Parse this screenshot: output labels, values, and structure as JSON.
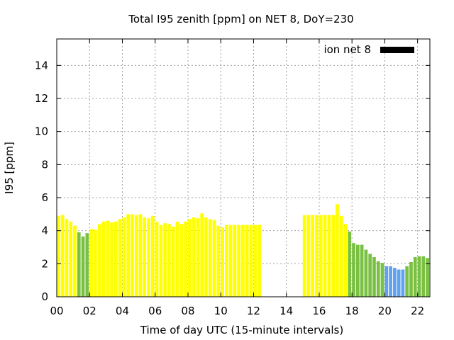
{
  "chart_data": {
    "type": "bar",
    "title": "Total I95 zenith [ppm] on NET 8, DoY=230",
    "xlabel": "Time of day UTC (15-minute intervals)",
    "ylabel": "I95 [ppm]",
    "xlim": [
      0,
      22.75
    ],
    "ylim": [
      0,
      15.6
    ],
    "x_tick_labels": [
      "00",
      "02",
      "04",
      "06",
      "08",
      "10",
      "12",
      "14",
      "16",
      "18",
      "20",
      "22"
    ],
    "x_tick_values": [
      0,
      2,
      4,
      6,
      8,
      10,
      12,
      14,
      16,
      18,
      20,
      22
    ],
    "y_tick_values": [
      0,
      2,
      4,
      6,
      8,
      10,
      12,
      14
    ],
    "y_tick_labels": [
      "0",
      "2",
      "4",
      "6",
      "8",
      "10",
      "12",
      "14"
    ],
    "grid": true,
    "legend": {
      "label": "ion net 8",
      "position": "top-right",
      "color": "#000000"
    },
    "colors": {
      "yellow": "#ffff00",
      "green": "#7ac143",
      "blue": "#5ea2f0"
    },
    "bin_width_hours": 0.25,
    "bars": [
      {
        "x": 0.0,
        "y": 4.9,
        "c": "yellow"
      },
      {
        "x": 0.25,
        "y": 4.95,
        "c": "yellow"
      },
      {
        "x": 0.5,
        "y": 4.7,
        "c": "yellow"
      },
      {
        "x": 0.75,
        "y": 4.55,
        "c": "yellow"
      },
      {
        "x": 1.0,
        "y": 4.3,
        "c": "yellow"
      },
      {
        "x": 1.25,
        "y": 3.9,
        "c": "green"
      },
      {
        "x": 1.5,
        "y": 3.65,
        "c": "green"
      },
      {
        "x": 1.75,
        "y": 3.85,
        "c": "green"
      },
      {
        "x": 2.0,
        "y": 4.1,
        "c": "yellow"
      },
      {
        "x": 2.25,
        "y": 4.05,
        "c": "yellow"
      },
      {
        "x": 2.5,
        "y": 4.4,
        "c": "yellow"
      },
      {
        "x": 2.75,
        "y": 4.55,
        "c": "yellow"
      },
      {
        "x": 3.0,
        "y": 4.6,
        "c": "yellow"
      },
      {
        "x": 3.25,
        "y": 4.5,
        "c": "yellow"
      },
      {
        "x": 3.5,
        "y": 4.55,
        "c": "yellow"
      },
      {
        "x": 3.75,
        "y": 4.7,
        "c": "yellow"
      },
      {
        "x": 4.0,
        "y": 4.8,
        "c": "yellow"
      },
      {
        "x": 4.25,
        "y": 5.0,
        "c": "yellow"
      },
      {
        "x": 4.5,
        "y": 5.0,
        "c": "yellow"
      },
      {
        "x": 4.75,
        "y": 4.95,
        "c": "yellow"
      },
      {
        "x": 5.0,
        "y": 5.0,
        "c": "yellow"
      },
      {
        "x": 5.25,
        "y": 4.8,
        "c": "yellow"
      },
      {
        "x": 5.5,
        "y": 4.75,
        "c": "yellow"
      },
      {
        "x": 5.75,
        "y": 4.9,
        "c": "yellow"
      },
      {
        "x": 6.0,
        "y": 4.55,
        "c": "yellow"
      },
      {
        "x": 6.25,
        "y": 4.35,
        "c": "yellow"
      },
      {
        "x": 6.5,
        "y": 4.45,
        "c": "yellow"
      },
      {
        "x": 6.75,
        "y": 4.4,
        "c": "yellow"
      },
      {
        "x": 7.0,
        "y": 4.25,
        "c": "yellow"
      },
      {
        "x": 7.25,
        "y": 4.55,
        "c": "yellow"
      },
      {
        "x": 7.5,
        "y": 4.4,
        "c": "yellow"
      },
      {
        "x": 7.75,
        "y": 4.55,
        "c": "yellow"
      },
      {
        "x": 8.0,
        "y": 4.7,
        "c": "yellow"
      },
      {
        "x": 8.25,
        "y": 4.8,
        "c": "yellow"
      },
      {
        "x": 8.5,
        "y": 4.75,
        "c": "yellow"
      },
      {
        "x": 8.75,
        "y": 5.05,
        "c": "yellow"
      },
      {
        "x": 9.0,
        "y": 4.8,
        "c": "yellow"
      },
      {
        "x": 9.25,
        "y": 4.7,
        "c": "yellow"
      },
      {
        "x": 9.5,
        "y": 4.65,
        "c": "yellow"
      },
      {
        "x": 9.75,
        "y": 4.3,
        "c": "yellow"
      },
      {
        "x": 10.0,
        "y": 4.2,
        "c": "yellow"
      },
      {
        "x": 10.25,
        "y": 4.35,
        "c": "yellow"
      },
      {
        "x": 10.5,
        "y": 4.35,
        "c": "yellow"
      },
      {
        "x": 10.75,
        "y": 4.35,
        "c": "yellow"
      },
      {
        "x": 11.0,
        "y": 4.35,
        "c": "yellow"
      },
      {
        "x": 11.25,
        "y": 4.35,
        "c": "yellow"
      },
      {
        "x": 11.5,
        "y": 4.35,
        "c": "yellow"
      },
      {
        "x": 11.75,
        "y": 4.35,
        "c": "yellow"
      },
      {
        "x": 12.0,
        "y": 4.35,
        "c": "yellow"
      },
      {
        "x": 12.25,
        "y": 4.35,
        "c": "yellow"
      },
      {
        "x": 15.0,
        "y": 4.95,
        "c": "yellow"
      },
      {
        "x": 15.25,
        "y": 4.95,
        "c": "yellow"
      },
      {
        "x": 15.5,
        "y": 4.95,
        "c": "yellow"
      },
      {
        "x": 15.75,
        "y": 4.95,
        "c": "yellow"
      },
      {
        "x": 16.0,
        "y": 4.95,
        "c": "yellow"
      },
      {
        "x": 16.25,
        "y": 4.95,
        "c": "yellow"
      },
      {
        "x": 16.5,
        "y": 4.95,
        "c": "yellow"
      },
      {
        "x": 16.75,
        "y": 4.95,
        "c": "yellow"
      },
      {
        "x": 17.0,
        "y": 5.6,
        "c": "yellow"
      },
      {
        "x": 17.25,
        "y": 4.9,
        "c": "yellow"
      },
      {
        "x": 17.5,
        "y": 4.4,
        "c": "yellow"
      },
      {
        "x": 17.75,
        "y": 3.95,
        "c": "green"
      },
      {
        "x": 18.0,
        "y": 3.25,
        "c": "green"
      },
      {
        "x": 18.25,
        "y": 3.15,
        "c": "green"
      },
      {
        "x": 18.5,
        "y": 3.15,
        "c": "green"
      },
      {
        "x": 18.75,
        "y": 2.85,
        "c": "green"
      },
      {
        "x": 19.0,
        "y": 2.6,
        "c": "green"
      },
      {
        "x": 19.25,
        "y": 2.4,
        "c": "green"
      },
      {
        "x": 19.5,
        "y": 2.15,
        "c": "green"
      },
      {
        "x": 19.75,
        "y": 2.05,
        "c": "green"
      },
      {
        "x": 20.0,
        "y": 1.85,
        "c": "blue"
      },
      {
        "x": 20.25,
        "y": 1.85,
        "c": "blue"
      },
      {
        "x": 20.5,
        "y": 1.75,
        "c": "blue"
      },
      {
        "x": 20.75,
        "y": 1.65,
        "c": "blue"
      },
      {
        "x": 21.0,
        "y": 1.65,
        "c": "blue"
      },
      {
        "x": 21.25,
        "y": 1.85,
        "c": "green"
      },
      {
        "x": 21.5,
        "y": 2.1,
        "c": "green"
      },
      {
        "x": 21.75,
        "y": 2.4,
        "c": "green"
      },
      {
        "x": 22.0,
        "y": 2.45,
        "c": "green"
      },
      {
        "x": 22.25,
        "y": 2.45,
        "c": "green"
      },
      {
        "x": 22.5,
        "y": 2.35,
        "c": "green"
      }
    ]
  }
}
